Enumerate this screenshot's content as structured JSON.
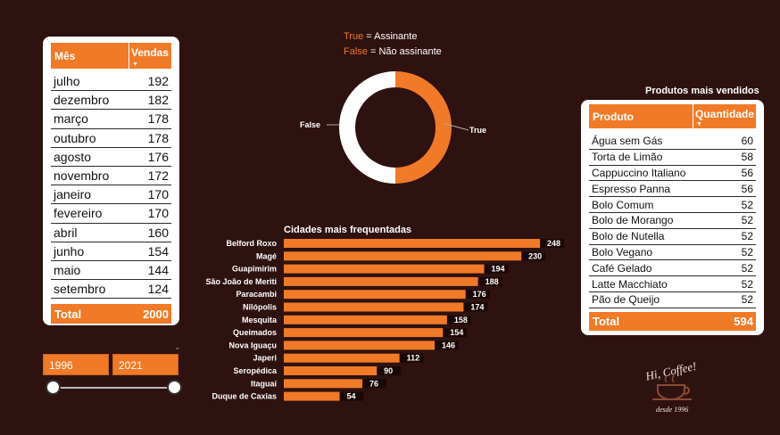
{
  "months_table": {
    "col_month": "Mês",
    "col_sales": "Vendas",
    "rows": [
      {
        "month": "julho",
        "sales": "192"
      },
      {
        "month": "dezembro",
        "sales": "182"
      },
      {
        "month": "março",
        "sales": "178"
      },
      {
        "month": "outubro",
        "sales": "178"
      },
      {
        "month": "agosto",
        "sales": "176"
      },
      {
        "month": "novembro",
        "sales": "172"
      },
      {
        "month": "janeiro",
        "sales": "170"
      },
      {
        "month": "fevereiro",
        "sales": "170"
      },
      {
        "month": "abril",
        "sales": "160"
      },
      {
        "month": "junho",
        "sales": "154"
      },
      {
        "month": "maio",
        "sales": "144"
      },
      {
        "month": "setembro",
        "sales": "124"
      }
    ],
    "total_label": "Total",
    "total_value": "2000"
  },
  "year_slicer": {
    "start": "1996",
    "end": "2021"
  },
  "donut": {
    "legend_true_key": "True",
    "legend_true_text": " = Assinante",
    "legend_false_key": "False",
    "legend_false_text": " = Não assinante",
    "label_true": "True",
    "label_false": "False",
    "true_fraction": 0.5,
    "colors": {
      "true": "#f07a27",
      "false": "#ffffff"
    }
  },
  "bar_chart": {
    "title": "Cidades mais frequentadas",
    "bar_color": "#f07a27"
  },
  "chart_data": {
    "type": "bar",
    "orientation": "horizontal",
    "title": "Cidades mais frequentadas",
    "categories": [
      "Belford Roxo",
      "Magé",
      "Guapimirim",
      "São João de Meriti",
      "Paracambi",
      "Nilópolis",
      "Mesquita",
      "Queimados",
      "Nova Iguaçu",
      "Japeri",
      "Seropédica",
      "Itaguaí",
      "Duque de Caxias"
    ],
    "values": [
      248,
      230,
      194,
      188,
      176,
      174,
      158,
      154,
      146,
      112,
      90,
      76,
      54
    ]
  },
  "products_table": {
    "title": "Produtos mais vendidos",
    "col_product": "Produto",
    "col_qty": "Quantidade",
    "rows": [
      {
        "product": "Água sem Gás",
        "qty": "60"
      },
      {
        "product": "Torta de Limão",
        "qty": "58"
      },
      {
        "product": "Cappuccino Italiano",
        "qty": "56"
      },
      {
        "product": "Espresso Panna",
        "qty": "56"
      },
      {
        "product": "Bolo Comum",
        "qty": "52"
      },
      {
        "product": "Bolo de Morango",
        "qty": "52"
      },
      {
        "product": "Bolo de Nutella",
        "qty": "52"
      },
      {
        "product": "Bolo Vegano",
        "qty": "52"
      },
      {
        "product": "Café Gelado",
        "qty": "52"
      },
      {
        "product": "Latte Macchiato",
        "qty": "52"
      },
      {
        "product": "Pão de Queijo",
        "qty": "52"
      }
    ],
    "total_label": "Total",
    "total_value": "594"
  },
  "logo": {
    "name": "Hi, Coffee!",
    "tagline": "desde 1996"
  },
  "icons": {
    "sort": "sort-desc-icon",
    "chevron": "chevron-down-icon",
    "logo": "coffee-cup-icon"
  }
}
